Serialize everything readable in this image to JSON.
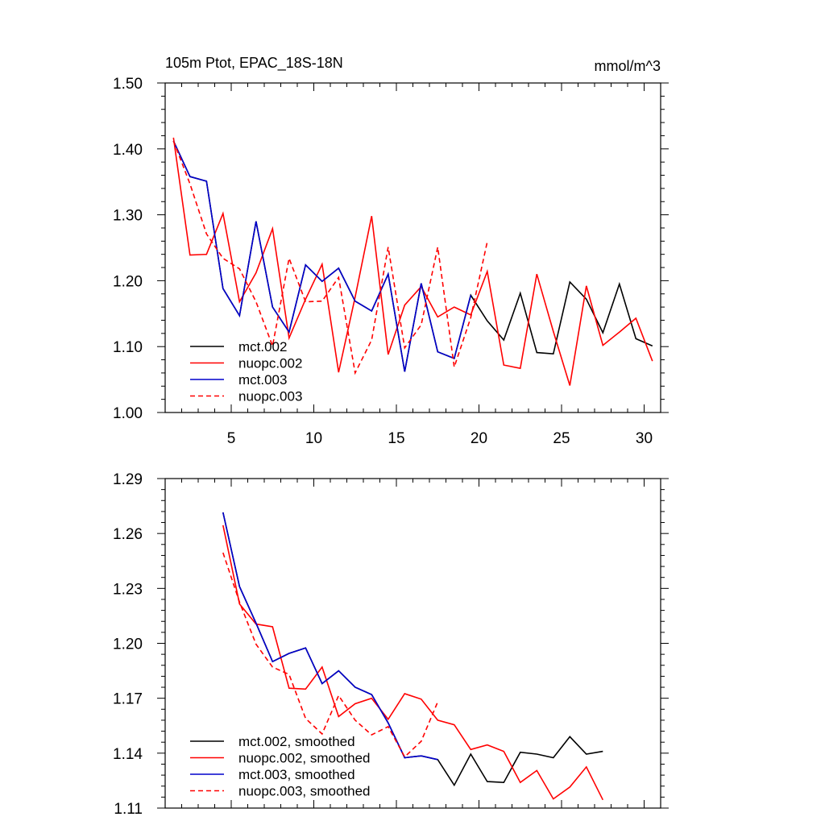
{
  "chart_data": [
    {
      "type": "line",
      "title": "105m Ptot, EPAC_18S-18N",
      "units": "mmol/m^3",
      "xlim": [
        1,
        31
      ],
      "ylim": [
        1.0,
        1.5
      ],
      "xticks": [
        5,
        10,
        15,
        20,
        25,
        30
      ],
      "xtick_labels": [
        "5",
        "10",
        "15",
        "20",
        "25",
        "30"
      ],
      "yticks": [
        1.0,
        1.1,
        1.2,
        1.3,
        1.4,
        1.5
      ],
      "ytick_labels": [
        "1.00",
        "1.10",
        "1.20",
        "1.30",
        "1.40",
        "1.50"
      ],
      "legend_position": "bottom-left",
      "series": [
        {
          "name": "mct.002",
          "color": "#000000",
          "dash": "solid",
          "x": [
            1.5,
            2.5,
            3.5,
            4.5,
            5.5,
            6.5,
            7.5,
            8.5,
            9.5,
            10.5,
            11.5,
            12.5,
            13.5,
            14.5,
            15.5,
            16.5,
            17.5,
            18.5,
            19.5,
            20.5,
            21.5,
            22.5,
            23.5,
            24.5,
            25.5,
            26.5,
            27.5,
            28.5,
            29.5,
            30.5
          ],
          "values": [
            1.412,
            1.358,
            1.351,
            1.188,
            1.147,
            1.29,
            1.16,
            1.122,
            1.224,
            1.199,
            1.219,
            1.169,
            1.154,
            1.21,
            1.062,
            1.196,
            1.092,
            1.082,
            1.178,
            1.139,
            1.11,
            1.181,
            1.091,
            1.089,
            1.198,
            1.172,
            1.121,
            1.195,
            1.112,
            1.101
          ]
        },
        {
          "name": "nuopc.002",
          "color": "#ff0000",
          "dash": "solid",
          "x": [
            1.5,
            2.5,
            3.5,
            4.5,
            5.5,
            6.5,
            7.5,
            8.5,
            9.5,
            10.5,
            11.5,
            12.5,
            13.5,
            14.5,
            15.5,
            16.5,
            17.5,
            18.5,
            19.5,
            20.5,
            21.5,
            22.5,
            23.5,
            24.5,
            25.5,
            26.5,
            27.5,
            28.5,
            29.5,
            30.5
          ],
          "values": [
            1.417,
            1.239,
            1.24,
            1.302,
            1.168,
            1.212,
            1.279,
            1.113,
            1.172,
            1.225,
            1.061,
            1.175,
            1.298,
            1.088,
            1.163,
            1.191,
            1.145,
            1.16,
            1.148,
            1.214,
            1.072,
            1.067,
            1.21,
            1.123,
            1.041,
            1.192,
            1.102,
            1.122,
            1.143,
            1.078
          ]
        },
        {
          "name": "mct.003",
          "color": "#0000cc",
          "dash": "solid",
          "x": [
            1.5,
            2.5,
            3.5,
            4.5,
            5.5,
            6.5,
            7.5,
            8.5,
            9.5,
            10.5,
            11.5,
            12.5,
            13.5,
            14.5,
            15.5,
            16.5,
            17.5,
            18.5,
            19.5
          ],
          "values": [
            1.412,
            1.358,
            1.351,
            1.188,
            1.147,
            1.29,
            1.16,
            1.122,
            1.224,
            1.199,
            1.219,
            1.169,
            1.154,
            1.21,
            1.062,
            1.196,
            1.092,
            1.082,
            1.178
          ]
        },
        {
          "name": "nuopc.003",
          "color": "#ff0000",
          "dash": "dashed",
          "x": [
            1.5,
            2.5,
            3.5,
            4.5,
            5.5,
            6.5,
            7.5,
            8.5,
            9.5,
            10.5,
            11.5,
            12.5,
            13.5,
            14.5,
            15.5,
            16.5,
            17.5,
            18.5,
            19.5,
            20.5
          ],
          "values": [
            1.412,
            1.347,
            1.271,
            1.234,
            1.218,
            1.168,
            1.101,
            1.234,
            1.168,
            1.169,
            1.205,
            1.06,
            1.11,
            1.251,
            1.098,
            1.133,
            1.251,
            1.069,
            1.144,
            1.259
          ]
        }
      ]
    },
    {
      "type": "line",
      "title": "",
      "xlim": [
        1,
        31
      ],
      "ylim": [
        1.11,
        1.29
      ],
      "xticks": [
        5,
        10,
        15,
        20,
        25,
        30
      ],
      "xtick_labels": [],
      "yticks": [
        1.11,
        1.14,
        1.17,
        1.2,
        1.23,
        1.26,
        1.29
      ],
      "ytick_labels": [
        "1.11",
        "1.14",
        "1.17",
        "1.20",
        "1.23",
        "1.26",
        "1.29"
      ],
      "legend_position": "bottom-left",
      "series": [
        {
          "name": "mct.002, smoothed",
          "color": "#000000",
          "dash": "solid",
          "x": [
            4.5,
            5.5,
            6.5,
            7.5,
            8.5,
            9.5,
            10.5,
            11.5,
            12.5,
            13.5,
            14.5,
            15.5,
            16.5,
            17.5,
            18.5,
            19.5,
            20.5,
            21.5,
            22.5,
            23.5,
            24.5,
            25.5,
            26.5,
            27.5
          ],
          "values": [
            1.2715,
            1.231,
            1.211,
            1.19,
            1.1945,
            1.1975,
            1.178,
            1.185,
            1.176,
            1.172,
            1.1565,
            1.1375,
            1.1385,
            1.1365,
            1.1225,
            1.1395,
            1.1245,
            1.124,
            1.1405,
            1.1395,
            1.1375,
            1.149,
            1.1395,
            1.141
          ]
        },
        {
          "name": "nuopc.002, smoothed",
          "color": "#ff0000",
          "dash": "solid",
          "x": [
            4.5,
            5.5,
            6.5,
            7.5,
            8.5,
            9.5,
            10.5,
            11.5,
            12.5,
            13.5,
            14.5,
            15.5,
            16.5,
            17.5,
            18.5,
            19.5,
            20.5,
            21.5,
            22.5,
            23.5,
            24.5,
            25.5,
            26.5,
            27.5
          ],
          "values": [
            1.2645,
            1.2215,
            1.2105,
            1.209,
            1.1755,
            1.175,
            1.187,
            1.16,
            1.167,
            1.17,
            1.1585,
            1.1725,
            1.1695,
            1.158,
            1.1555,
            1.142,
            1.1445,
            1.141,
            1.124,
            1.1305,
            1.115,
            1.1215,
            1.1325,
            1.1145
          ]
        },
        {
          "name": "mct.003, smoothed",
          "color": "#0000cc",
          "dash": "solid",
          "x": [
            4.5,
            5.5,
            6.5,
            7.5,
            8.5,
            9.5,
            10.5,
            11.5,
            12.5,
            13.5,
            14.5,
            15.5,
            16.5,
            17.5
          ],
          "values": [
            1.2715,
            1.231,
            1.211,
            1.19,
            1.1945,
            1.1975,
            1.178,
            1.185,
            1.176,
            1.172,
            1.1565,
            1.1375,
            1.1385,
            1.1365
          ]
        },
        {
          "name": "nuopc.003, smoothed",
          "color": "#ff0000",
          "dash": "dashed",
          "x": [
            4.5,
            5.5,
            6.5,
            7.5,
            8.5,
            9.5,
            10.5,
            11.5,
            12.5,
            13.5,
            14.5,
            15.5,
            16.5,
            17.5
          ],
          "values": [
            1.2495,
            1.2225,
            1.1995,
            1.187,
            1.183,
            1.159,
            1.1505,
            1.1715,
            1.158,
            1.15,
            1.1545,
            1.138,
            1.1465,
            1.168
          ]
        }
      ]
    }
  ]
}
